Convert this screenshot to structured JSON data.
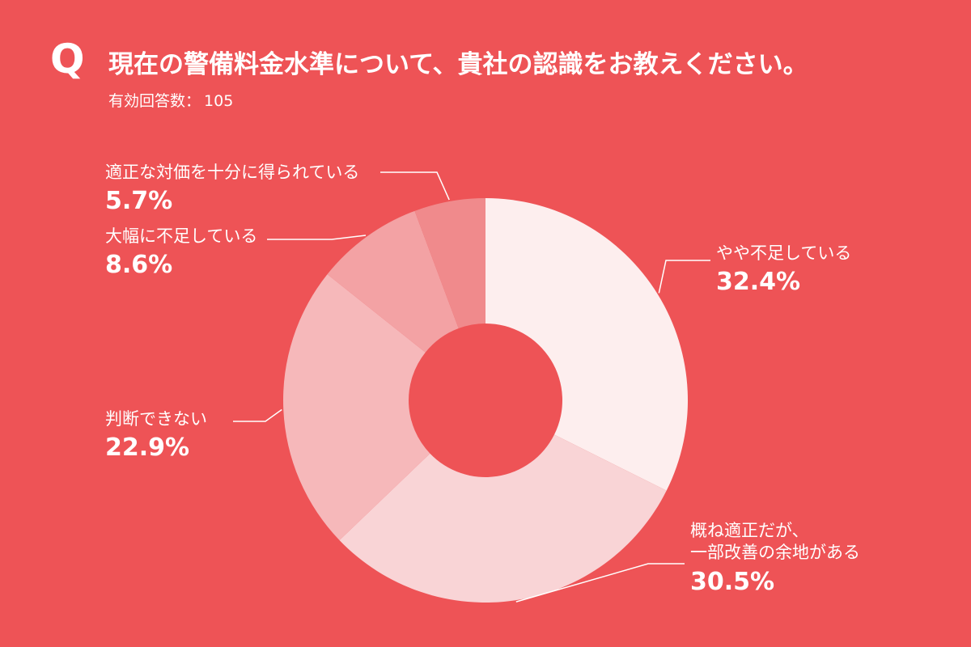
{
  "header": {
    "q_mark": "Q",
    "question": "現在の警備料金水準について、貴社の認識をお教えください。",
    "respondents_label": "有効回答数：",
    "respondents_count": "105"
  },
  "chart_data": {
    "type": "pie",
    "donut": true,
    "unit": "%",
    "slices": [
      {
        "label": "やや不足している",
        "value": 32.4,
        "value_label": "32.4%",
        "color": "#fdeeee"
      },
      {
        "label": "概ね適正だが、\n一部改善の余地がある",
        "value": 30.5,
        "value_label": "30.5%",
        "color": "#f9d4d6"
      },
      {
        "label": "判断できない",
        "value": 22.9,
        "value_label": "22.9%",
        "color": "#f6b8ba"
      },
      {
        "label": "大幅に不足している",
        "value": 8.6,
        "value_label": "8.6%",
        "color": "#f3a2a4"
      },
      {
        "label": "適正な対価を十分に得られている",
        "value": 5.7,
        "value_label": "5.7%",
        "color": "#f08a8c"
      }
    ]
  },
  "colors": {
    "background": "#ee5356",
    "text": "#ffffff",
    "leader_line": "#ffffff"
  }
}
